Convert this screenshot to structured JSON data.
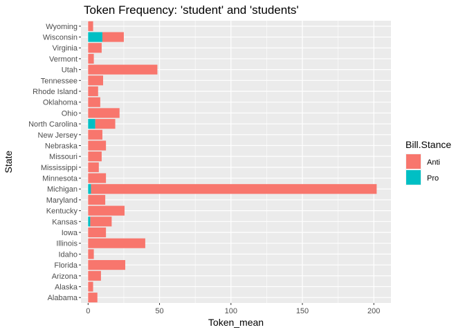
{
  "chart_data": {
    "type": "bar",
    "orientation": "horizontal",
    "stacked": true,
    "title": "Token Frequency: 'student' and 'students'",
    "xlabel": "Token_mean",
    "ylabel": "State",
    "xlim": [
      -5,
      212
    ],
    "xticks": [
      0,
      50,
      100,
      150,
      200
    ],
    "grid": true,
    "legend": {
      "title": "Bill.Stance",
      "placement": "right",
      "entries": [
        {
          "name": "Anti",
          "color": "#F8766D"
        },
        {
          "name": "Pro",
          "color": "#00BFC4"
        }
      ]
    },
    "categories": [
      "Wyoming",
      "Wisconsin",
      "Virginia",
      "Vermont",
      "Utah",
      "Tennessee",
      "Rhode Island",
      "Oklahoma",
      "Ohio",
      "North Carolina",
      "New Jersey",
      "Nebraska",
      "Missouri",
      "Mississippi",
      "Minnesota",
      "Michigan",
      "Maryland",
      "Kentucky",
      "Kansas",
      "Iowa",
      "Illinois",
      "Idaho",
      "Florida",
      "Arizona",
      "Alaska",
      "Alabama"
    ],
    "series": [
      {
        "name": "Pro",
        "color": "#00BFC4",
        "values": [
          0,
          10,
          0,
          0,
          0,
          0,
          0,
          0,
          0,
          5,
          0,
          0,
          0,
          0,
          0,
          2,
          0,
          0,
          1.5,
          0,
          0,
          0,
          0,
          0,
          0,
          0
        ]
      },
      {
        "name": "Anti",
        "color": "#F8766D",
        "values": [
          3.5,
          15,
          9.5,
          4,
          48.5,
          10.5,
          7,
          8.5,
          22,
          14,
          10,
          12.5,
          9.5,
          7.5,
          12.5,
          200,
          12,
          25.5,
          15,
          12.5,
          40,
          4,
          26,
          9,
          3.5,
          6.5
        ]
      }
    ]
  }
}
